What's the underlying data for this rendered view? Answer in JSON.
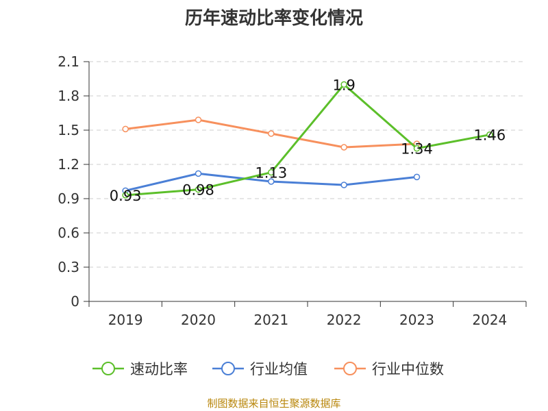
{
  "chart_data": {
    "type": "line",
    "title": "历年速动比率变化情况",
    "categories": [
      "2019",
      "2020",
      "2021",
      "2022",
      "2023",
      "2024"
    ],
    "series": [
      {
        "name": "速动比率",
        "color": "#5cbf2a",
        "values": [
          0.93,
          0.98,
          1.13,
          1.9,
          1.34,
          1.46
        ],
        "labels": [
          "0.93",
          "0.98",
          "1.13",
          "1.9",
          "1.34",
          "1.46"
        ]
      },
      {
        "name": "行业均值",
        "color": "#4a7fd6",
        "values": [
          0.97,
          1.12,
          1.05,
          1.02,
          1.09,
          null
        ]
      },
      {
        "name": "行业中位数",
        "color": "#f7905d",
        "values": [
          1.51,
          1.59,
          1.47,
          1.35,
          1.38,
          null
        ]
      }
    ],
    "yticks": [
      "0",
      "0.3",
      "0.6",
      "0.9",
      "1.2",
      "1.5",
      "1.8",
      "2.1"
    ],
    "ylim": [
      0,
      2.1
    ],
    "grid": true,
    "legend_position": "bottom-center",
    "xlabel": "",
    "ylabel": ""
  },
  "footer": {
    "source": "制图数据来自恒生聚源数据库"
  }
}
